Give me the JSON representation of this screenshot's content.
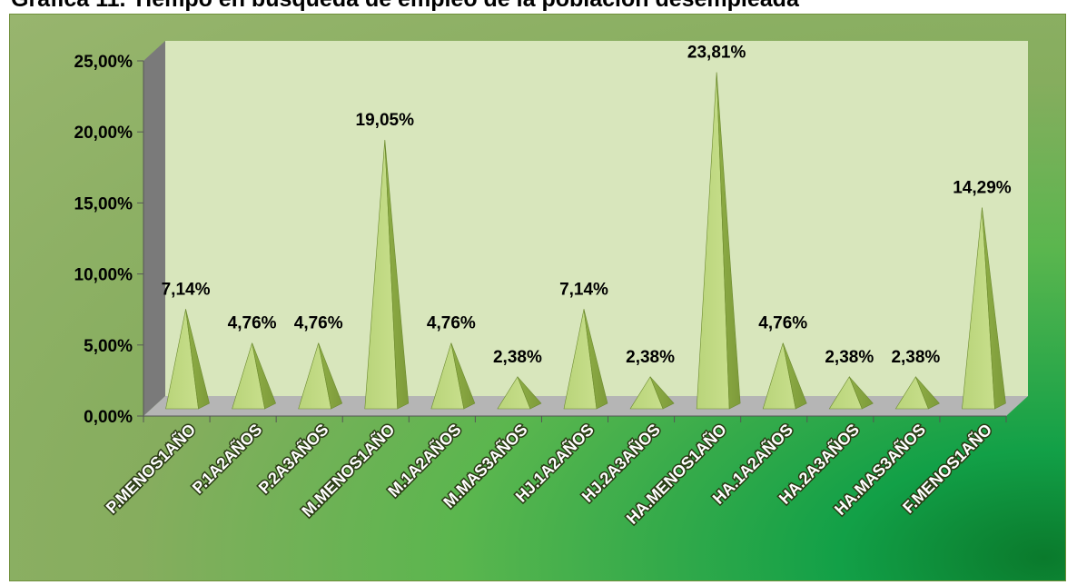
{
  "chart_data": {
    "type": "bar",
    "title": "Grafica 11. Tiempo en búsqueda de empleo de la población desempleada",
    "categories": [
      "P.MENOS1AÑO",
      "P.1A2AÑOS",
      "P.2A3AÑOS",
      "M.MENOS1AÑO",
      "M.1A2AÑOS",
      "M.MAS3AÑOS",
      "HJ.1A2AÑOS",
      "HJ.2A3AÑOS",
      "HA.MENOS1AÑO",
      "HA.1A2AÑOS",
      "HA.2A3AÑOS",
      "HA.MAS3AÑOS",
      "F.MENOS1AÑO"
    ],
    "values": [
      7.14,
      4.76,
      4.76,
      19.05,
      4.76,
      2.38,
      7.14,
      2.38,
      23.81,
      4.76,
      2.38,
      2.38,
      14.29
    ],
    "data_labels": [
      "7,14%",
      "4,76%",
      "4,76%",
      "19,05%",
      "4,76%",
      "2,38%",
      "7,14%",
      "2,38%",
      "23,81%",
      "4,76%",
      "2,38%",
      "2,38%",
      "14,29%"
    ],
    "ylim": [
      0,
      25
    ],
    "yticks": [
      0,
      5,
      10,
      15,
      20,
      25
    ],
    "ytick_labels": [
      "0,00%",
      "5,00%",
      "10,00%",
      "15,00%",
      "20,00%",
      "25,00%"
    ],
    "xlabel": "",
    "ylabel": "",
    "grid": false,
    "bar_shape": "3d-pyramid",
    "colors": {
      "bar_light": "#c8df8c",
      "bar_dark": "#7d9a3a",
      "wall": "#d8e6bc",
      "side_wall": "#7a7a7a",
      "floor": "#b5b5b5"
    }
  }
}
